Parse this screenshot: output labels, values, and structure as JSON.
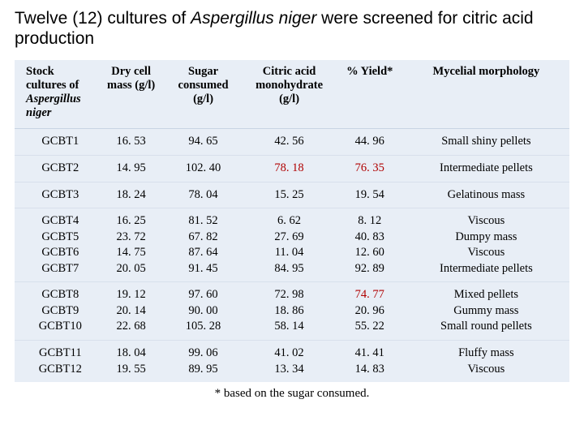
{
  "title_prefix": "Twelve (12) cultures of ",
  "title_species": "Aspergillus niger",
  "title_suffix": " were screened for citric acid production",
  "columns": {
    "stock_l1": "Stock cultures of",
    "stock_l2": "Aspergillus niger",
    "dry_l1": "Dry cell",
    "dry_l2": "mass (g/l)",
    "sugar_l1": "Sugar",
    "sugar_l2": "consumed",
    "sugar_l3": "(g/l)",
    "citric_l1": "Citric acid",
    "citric_l2": "monohydrate",
    "citric_l3": "(g/l)",
    "yield": "% Yield*",
    "morph": "Mycelial morphology"
  },
  "groups": [
    {
      "stock": [
        "GCBT1"
      ],
      "dry": [
        "16. 53"
      ],
      "sugar": [
        "94. 65"
      ],
      "citric": [
        "42. 56"
      ],
      "yield": [
        "44. 96"
      ],
      "morph": [
        "Small shiny pellets"
      ],
      "highlight": false
    },
    {
      "stock": [
        "GCBT2"
      ],
      "dry": [
        "14. 95"
      ],
      "sugar": [
        "102. 40"
      ],
      "citric": [
        "78. 18"
      ],
      "yield": [
        "76. 35"
      ],
      "morph": [
        "Intermediate pellets"
      ],
      "highlight": true
    },
    {
      "stock": [
        "GCBT3"
      ],
      "dry": [
        "18. 24"
      ],
      "sugar": [
        "78. 04"
      ],
      "citric": [
        "15. 25"
      ],
      "yield": [
        "19. 54"
      ],
      "morph": [
        "Gelatinous mass"
      ],
      "highlight": false
    },
    {
      "stock": [
        "GCBT4",
        "GCBT5",
        "GCBT6",
        "GCBT7"
      ],
      "dry": [
        "16. 25",
        "23. 72",
        "14. 75",
        "20. 05"
      ],
      "sugar": [
        "81. 52",
        "67. 82",
        "87. 64",
        "91. 45"
      ],
      "citric": [
        "6. 62",
        "27. 69",
        "11. 04",
        "84. 95"
      ],
      "yield": [
        "8. 12",
        "40. 83",
        "12. 60",
        "92. 89"
      ],
      "morph": [
        "Viscous",
        "Dumpy mass",
        "Viscous",
        "Intermediate pellets"
      ],
      "highlight": false
    },
    {
      "stock": [
        "GCBT8",
        "GCBT9",
        "GCBT10"
      ],
      "dry": [
        "19. 12",
        "20. 14",
        "22. 68"
      ],
      "sugar": [
        "97. 60",
        "90. 00",
        "105. 28"
      ],
      "citric": [
        "72. 98",
        "18. 86",
        "58. 14"
      ],
      "yield": [
        "74. 77",
        "20. 96",
        "55. 22"
      ],
      "morph": [
        "Mixed pellets",
        "Gummy mass",
        "Small round pellets"
      ],
      "highlight": false
    },
    {
      "stock": [
        "GCBT11",
        "GCBT12"
      ],
      "dry": [
        "18. 04",
        "19. 55"
      ],
      "sugar": [
        "99. 06",
        "89. 95"
      ],
      "citric": [
        "41. 02",
        "13. 34"
      ],
      "yield": [
        "41. 41",
        "14. 83"
      ],
      "morph": [
        "Fluffy mass",
        "Viscous"
      ],
      "highlight": false
    }
  ],
  "footnote": "* based on the sugar consumed.",
  "colors": {
    "table_bg": "#e8eef6",
    "highlight_text": "#b00000",
    "text": "#000000"
  }
}
